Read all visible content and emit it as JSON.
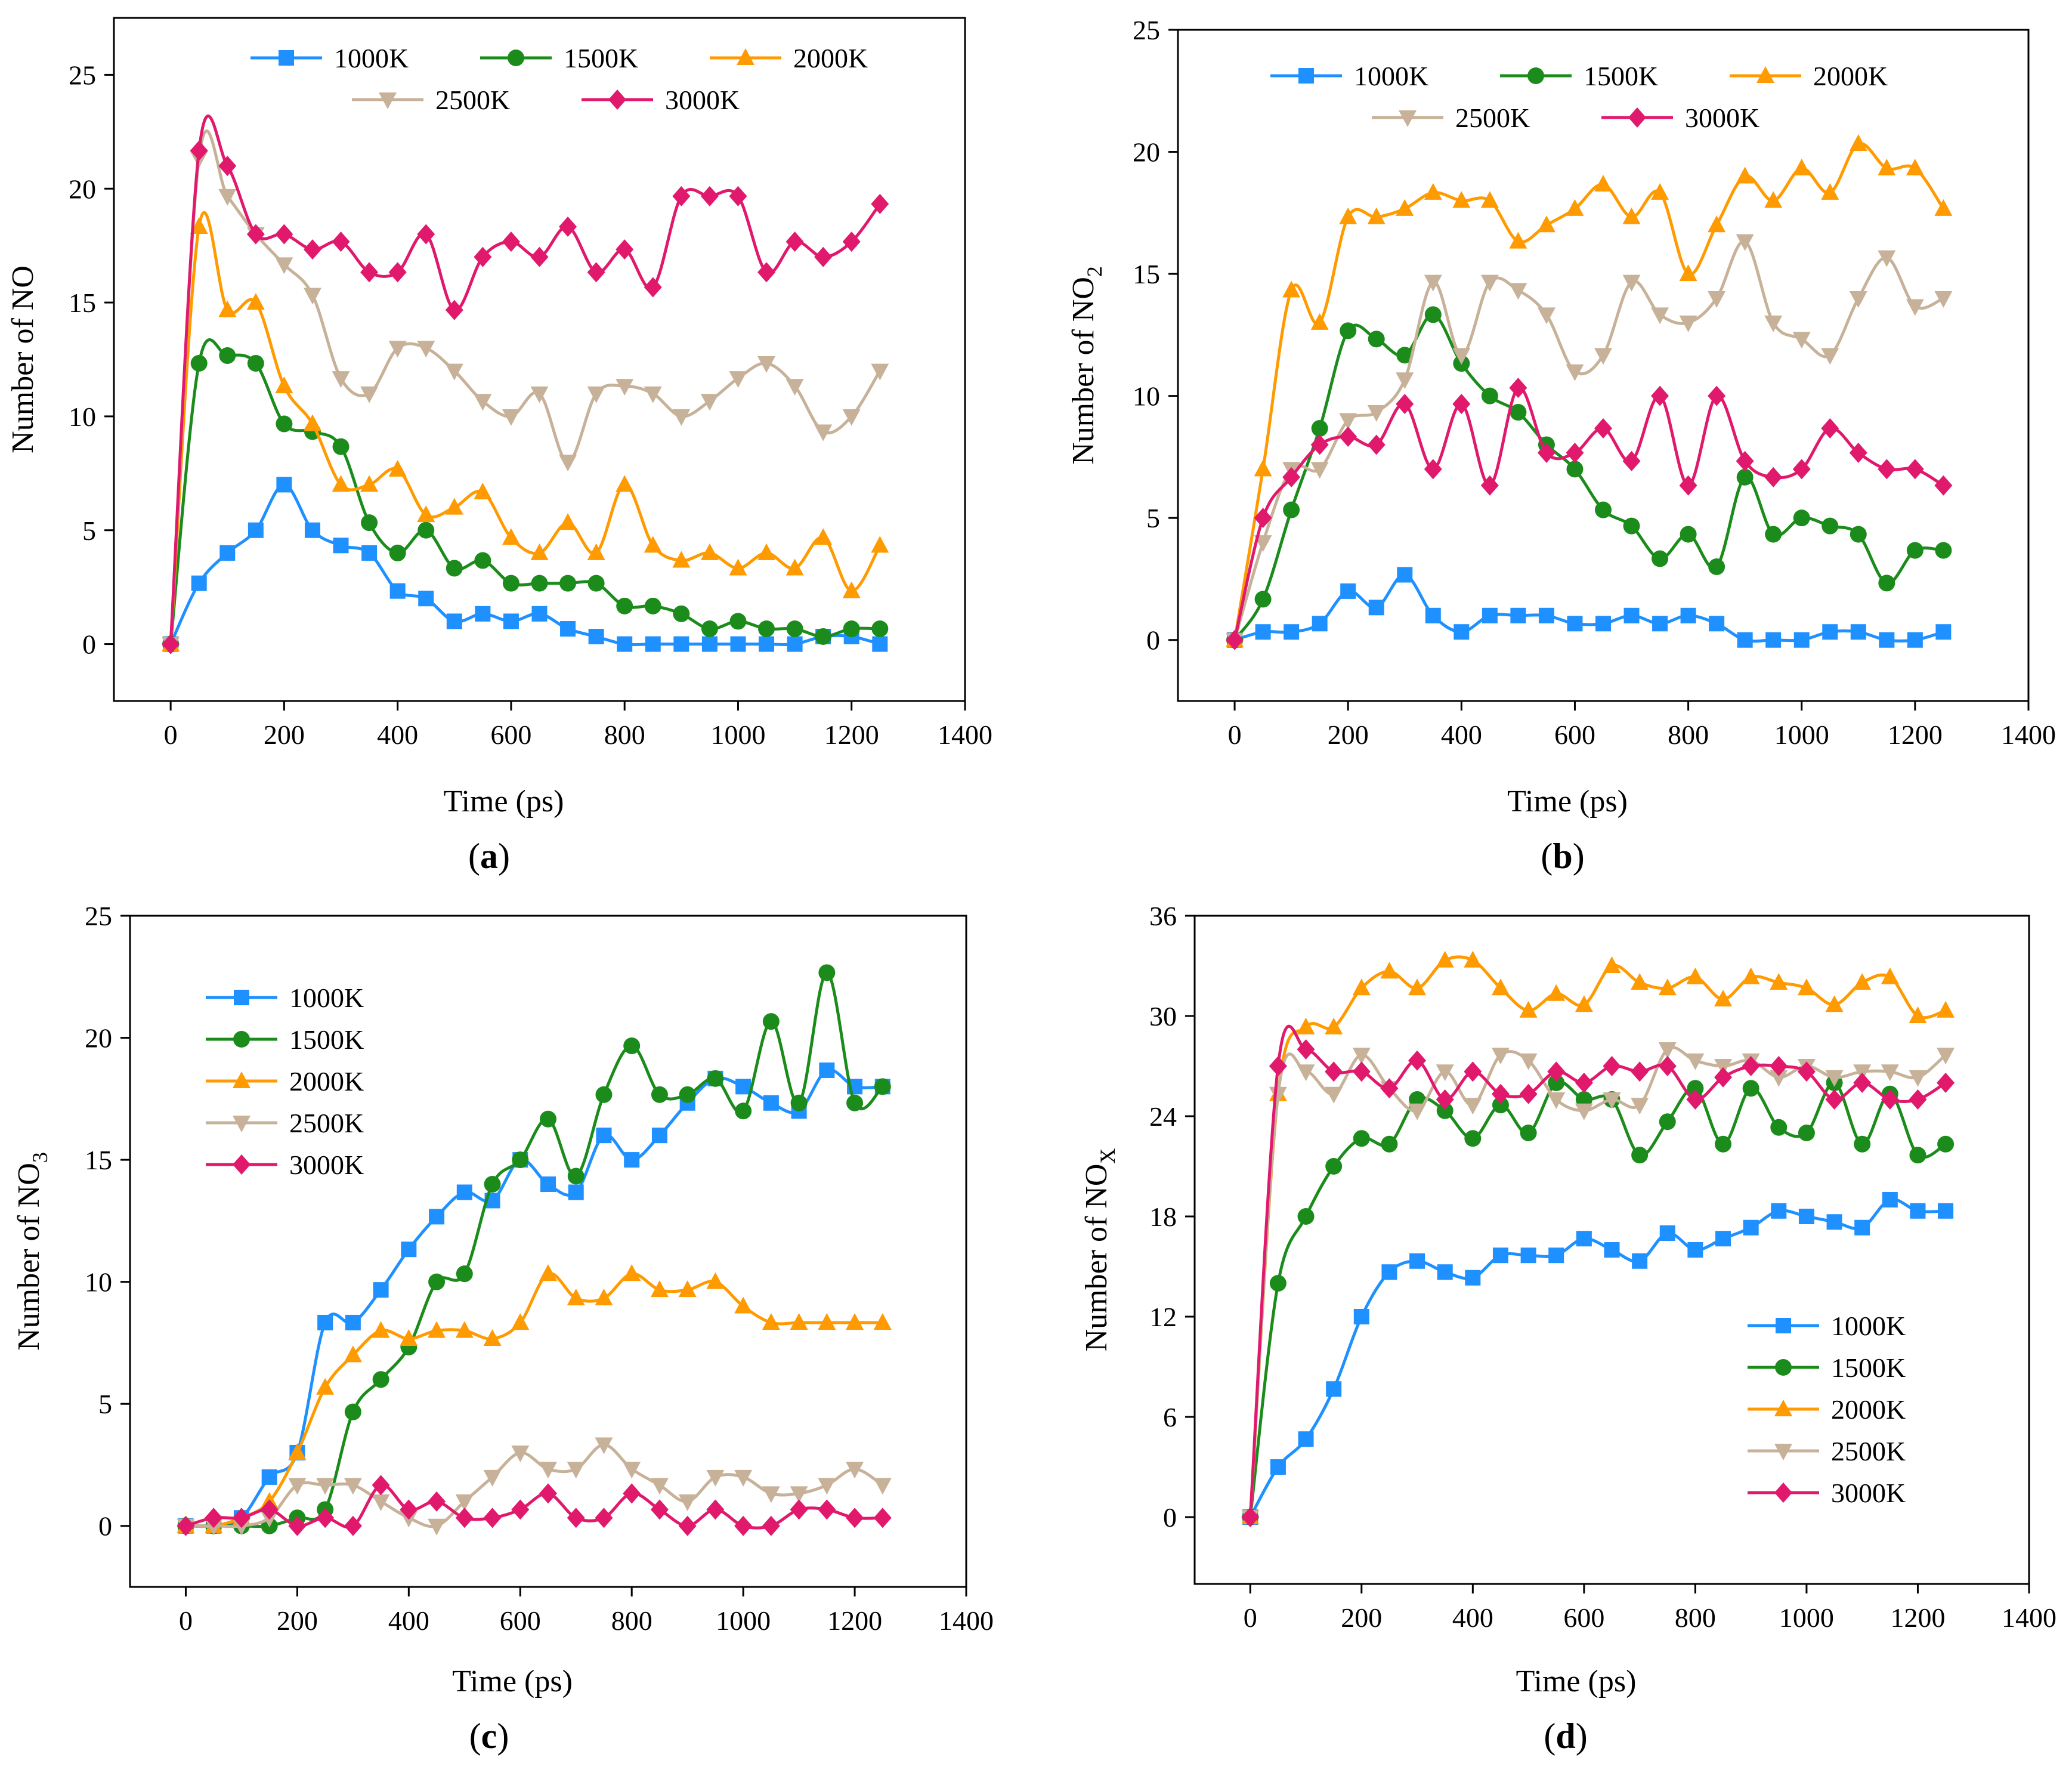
{
  "figure": {
    "panels_order": [
      "a",
      "b",
      "c",
      "d"
    ]
  },
  "chart_data": [
    {
      "id": "a",
      "type": "line",
      "title": "",
      "panel_label": "(a)",
      "xlabel": "Time (ps)",
      "ylabel": "Number of NO",
      "ylabel_main": "Number of NO",
      "ylabel_sub": "",
      "xlim": [
        -100,
        1400
      ],
      "ylim": [
        -2.5,
        27.5
      ],
      "xticks": [
        0,
        200,
        400,
        600,
        800,
        1000,
        1200,
        1400
      ],
      "yticks": [
        0,
        5,
        10,
        15,
        20,
        25
      ],
      "legend": "top, two rows",
      "x": [
        0,
        50,
        100,
        150,
        200,
        250,
        300,
        350,
        400,
        450,
        500,
        550,
        600,
        650,
        700,
        750,
        800,
        850,
        900,
        950,
        1000,
        1050,
        1100,
        1150,
        1200,
        1250
      ],
      "series": [
        {
          "name": "1000K",
          "color": "#1e90ff",
          "marker": "square",
          "values": [
            0,
            2.67,
            4,
            5,
            7,
            5,
            4.33,
            4,
            2.33,
            2,
            1,
            1.33,
            1,
            1.33,
            0.67,
            0.33,
            0,
            0,
            0,
            0,
            0,
            0,
            0,
            0.33,
            0.33,
            0
          ]
        },
        {
          "name": "1500K",
          "color": "#1b8c1b",
          "marker": "circle",
          "values": [
            0,
            12.33,
            12.67,
            12.33,
            9.67,
            9.33,
            8.67,
            5.33,
            4,
            5,
            3.33,
            3.67,
            2.67,
            2.67,
            2.67,
            2.67,
            1.67,
            1.67,
            1.33,
            0.67,
            1,
            0.67,
            0.67,
            0.33,
            0.67,
            0.67
          ]
        },
        {
          "name": "2000K",
          "color": "#ff9a00",
          "marker": "triangle-up",
          "values": [
            0,
            18.33,
            14.67,
            15,
            11.33,
            9.67,
            7,
            7,
            7.67,
            5.67,
            6,
            6.67,
            4.67,
            4,
            5.33,
            4,
            7,
            4.33,
            3.67,
            4,
            3.33,
            4,
            3.33,
            4.67,
            2.33,
            4.33
          ]
        },
        {
          "name": "2500K",
          "color": "#c7b299",
          "marker": "triangle-down",
          "values": [
            0,
            21.33,
            19.67,
            18,
            16.67,
            15.33,
            11.67,
            11,
            13,
            13,
            12,
            10.67,
            10,
            11,
            8,
            11,
            11.33,
            11,
            10,
            10.67,
            11.67,
            12.33,
            11.33,
            9.33,
            10,
            12
          ]
        },
        {
          "name": "3000K",
          "color": "#e0196d",
          "marker": "diamond",
          "values": [
            0,
            21.67,
            21,
            18,
            18,
            17.33,
            17.67,
            16.33,
            16.33,
            18,
            14.67,
            17,
            17.67,
            17,
            18.33,
            16.33,
            17.33,
            15.67,
            19.67,
            19.67,
            19.67,
            16.33,
            17.67,
            17,
            17.67,
            19.33
          ]
        }
      ]
    },
    {
      "id": "b",
      "type": "line",
      "title": "",
      "panel_label": "(b)",
      "xlabel": "Time (ps)",
      "ylabel": "Number of NO2",
      "ylabel_main": "Number of NO",
      "ylabel_sub": "2",
      "xlim": [
        -100,
        1400
      ],
      "ylim": [
        -2.5,
        25
      ],
      "xticks": [
        0,
        200,
        400,
        600,
        800,
        1000,
        1200,
        1400
      ],
      "yticks": [
        0,
        5,
        10,
        15,
        20,
        25
      ],
      "legend": "top, two rows",
      "x": [
        0,
        50,
        100,
        150,
        200,
        250,
        300,
        350,
        400,
        450,
        500,
        550,
        600,
        650,
        700,
        750,
        800,
        850,
        900,
        950,
        1000,
        1050,
        1100,
        1150,
        1200,
        1250
      ],
      "series": [
        {
          "name": "1000K",
          "color": "#1e90ff",
          "marker": "square",
          "values": [
            0,
            0.33,
            0.33,
            0.67,
            2,
            1.33,
            2.67,
            1,
            0.33,
            1,
            1,
            1,
            0.67,
            0.67,
            1,
            0.67,
            1,
            0.67,
            0,
            0,
            0,
            0.33,
            0.33,
            0,
            0,
            0.33
          ]
        },
        {
          "name": "1500K",
          "color": "#1b8c1b",
          "marker": "circle",
          "values": [
            0,
            1.67,
            5.33,
            8.67,
            12.67,
            12.33,
            11.67,
            13.33,
            11.33,
            10,
            9.33,
            8,
            7,
            5.33,
            4.67,
            3.33,
            4.33,
            3,
            6.67,
            4.33,
            5,
            4.67,
            4.33,
            2.33,
            3.67,
            3.67
          ]
        },
        {
          "name": "2000K",
          "color": "#ff9a00",
          "marker": "triangle-up",
          "values": [
            0,
            7,
            14.33,
            13,
            17.33,
            17.33,
            17.67,
            18.33,
            18,
            18,
            16.33,
            17,
            17.67,
            18.67,
            17.33,
            18.33,
            15,
            17,
            19,
            18,
            19.33,
            18.33,
            20.33,
            19.33,
            19.33,
            17.67
          ]
        },
        {
          "name": "2500K",
          "color": "#c7b299",
          "marker": "triangle-down",
          "values": [
            0,
            4,
            7,
            7,
            9,
            9.33,
            10.67,
            14.67,
            11.67,
            14.67,
            14.33,
            13.33,
            11,
            11.67,
            14.67,
            13.33,
            13,
            14,
            16.33,
            13,
            12.33,
            11.67,
            14,
            15.67,
            13.67,
            14
          ]
        },
        {
          "name": "3000K",
          "color": "#e0196d",
          "marker": "diamond",
          "values": [
            0,
            5,
            6.67,
            8,
            8.33,
            8,
            9.67,
            7,
            9.67,
            6.33,
            10.33,
            7.67,
            7.67,
            8.67,
            7.33,
            10,
            6.33,
            10,
            7.33,
            6.67,
            7,
            8.67,
            7.67,
            7,
            7,
            6.33
          ]
        }
      ]
    },
    {
      "id": "c",
      "type": "line",
      "title": "",
      "panel_label": "(c)",
      "xlabel": "Time (ps)",
      "ylabel": "Number of NO3",
      "ylabel_main": "Number of NO",
      "ylabel_sub": "3",
      "xlim": [
        -100,
        1400
      ],
      "ylim": [
        -2.5,
        25
      ],
      "xticks": [
        0,
        200,
        400,
        600,
        800,
        1000,
        1200,
        1400
      ],
      "yticks": [
        0,
        5,
        10,
        15,
        20,
        25
      ],
      "legend": "upper left, vertical",
      "x": [
        0,
        50,
        100,
        150,
        200,
        250,
        300,
        350,
        400,
        450,
        500,
        550,
        600,
        650,
        700,
        750,
        800,
        850,
        900,
        950,
        1000,
        1050,
        1100,
        1150,
        1200,
        1250
      ],
      "series": [
        {
          "name": "1000K",
          "color": "#1e90ff",
          "marker": "square",
          "values": [
            0,
            0,
            0.33,
            2,
            3,
            8.33,
            8.33,
            9.67,
            11.33,
            12.67,
            13.67,
            13.33,
            15,
            14,
            13.67,
            16,
            15,
            16,
            17.33,
            18.33,
            18,
            17.33,
            17,
            18.67,
            18,
            18
          ]
        },
        {
          "name": "1500K",
          "color": "#1b8c1b",
          "marker": "circle",
          "values": [
            0,
            0,
            0,
            0,
            0.33,
            0.67,
            4.67,
            6,
            7.33,
            10,
            10.33,
            14,
            15,
            16.67,
            14.33,
            17.67,
            19.67,
            17.67,
            17.67,
            18.33,
            17,
            20.67,
            17.33,
            22.67,
            17.33,
            18
          ]
        },
        {
          "name": "2000K",
          "color": "#ff9a00",
          "marker": "triangle-up",
          "values": [
            0,
            0,
            0.33,
            1,
            3,
            5.67,
            7,
            8,
            7.67,
            8,
            8,
            7.67,
            8.33,
            10.33,
            9.33,
            9.33,
            10.33,
            9.67,
            9.67,
            10,
            9,
            8.33,
            8.33,
            8.33,
            8.33,
            8.33
          ]
        },
        {
          "name": "2500K",
          "color": "#c7b299",
          "marker": "triangle-down",
          "values": [
            0,
            0,
            0,
            0.33,
            1.67,
            1.67,
            1.67,
            1,
            0.33,
            0,
            1,
            2,
            3,
            2.33,
            2.33,
            3.33,
            2.33,
            1.67,
            1,
            2,
            2,
            1.33,
            1.33,
            1.67,
            2.33,
            1.67
          ]
        },
        {
          "name": "3000K",
          "color": "#e0196d",
          "marker": "diamond",
          "values": [
            0,
            0.33,
            0.33,
            0.67,
            0,
            0.33,
            0,
            1.67,
            0.67,
            1,
            0.33,
            0.33,
            0.67,
            1.33,
            0.33,
            0.33,
            1.33,
            0.67,
            0,
            0.67,
            0,
            0,
            0.67,
            0.67,
            0.33,
            0.33
          ]
        }
      ]
    },
    {
      "id": "d",
      "type": "line",
      "title": "",
      "panel_label": "(d)",
      "xlabel": "Time (ps)",
      "ylabel": "Number of NOX",
      "ylabel_main": "Number of NO",
      "ylabel_sub": "X",
      "xlim": [
        -100,
        1400
      ],
      "ylim": [
        -4,
        36
      ],
      "xticks": [
        0,
        200,
        400,
        600,
        800,
        1000,
        1200,
        1400
      ],
      "yticks": [
        0,
        6,
        12,
        18,
        24,
        30,
        36
      ],
      "legend": "lower right, vertical",
      "x": [
        0,
        50,
        100,
        150,
        200,
        250,
        300,
        350,
        400,
        450,
        500,
        550,
        600,
        650,
        700,
        750,
        800,
        850,
        900,
        950,
        1000,
        1050,
        1100,
        1150,
        1200,
        1250
      ],
      "series": [
        {
          "name": "1000K",
          "color": "#1e90ff",
          "marker": "square",
          "values": [
            0,
            3,
            4.67,
            7.67,
            12,
            14.67,
            15.33,
            14.67,
            14.33,
            15.67,
            15.67,
            15.67,
            16.67,
            16,
            15.33,
            17,
            16,
            16.67,
            17.33,
            18.33,
            18,
            17.67,
            17.33,
            19,
            18.33,
            18.33
          ]
        },
        {
          "name": "1500K",
          "color": "#1b8c1b",
          "marker": "circle",
          "values": [
            0,
            14,
            18,
            21,
            22.67,
            22.33,
            25,
            24.33,
            22.67,
            24.67,
            23,
            26,
            25,
            25,
            21.67,
            23.67,
            25.67,
            22.33,
            25.67,
            23.33,
            23,
            26,
            22.33,
            25.33,
            21.67,
            22.33
          ]
        },
        {
          "name": "2000K",
          "color": "#ff9a00",
          "marker": "triangle-up",
          "values": [
            0,
            25.33,
            29.33,
            29.33,
            31.67,
            32.67,
            31.67,
            33.33,
            33.33,
            31.67,
            30.33,
            31.33,
            30.67,
            33,
            32,
            31.67,
            32.33,
            31,
            32.33,
            32,
            31.67,
            30.67,
            32,
            32.33,
            30,
            30.33
          ]
        },
        {
          "name": "2500K",
          "color": "#c7b299",
          "marker": "triangle-down",
          "values": [
            0,
            25.33,
            26.67,
            25.33,
            27.67,
            25.67,
            24.33,
            26.67,
            24.67,
            27.67,
            27.33,
            25,
            24.33,
            25,
            24.67,
            28,
            27.33,
            27,
            27.33,
            26.33,
            27,
            26.33,
            26.67,
            26.67,
            26.33,
            27.67
          ]
        },
        {
          "name": "3000K",
          "color": "#e0196d",
          "marker": "diamond",
          "values": [
            0,
            27,
            28,
            26.67,
            26.67,
            25.67,
            27.33,
            25,
            26.67,
            25.33,
            25.33,
            26.67,
            26,
            27,
            26.67,
            27,
            25,
            26.33,
            27,
            27,
            26.67,
            25,
            26,
            25,
            25,
            26
          ]
        }
      ]
    }
  ]
}
